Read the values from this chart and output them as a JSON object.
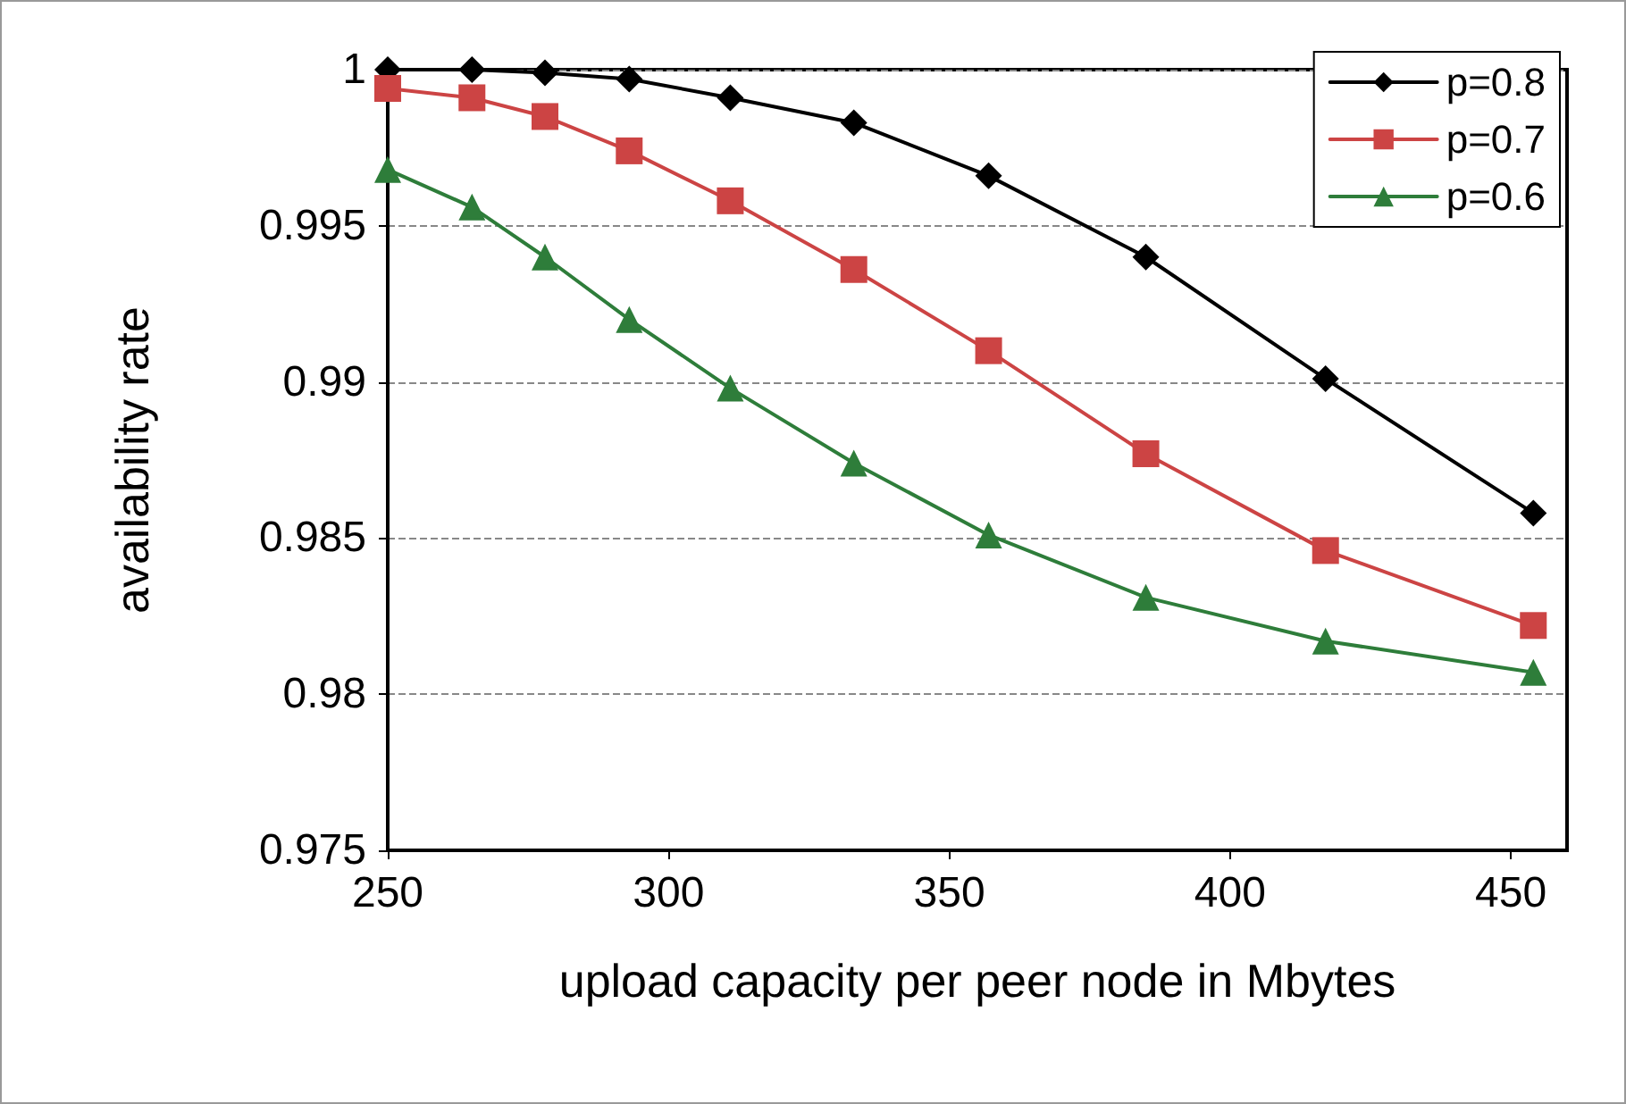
{
  "chart_data": {
    "type": "line",
    "xlabel": "upload capacity per peer node in Mbytes",
    "ylabel": "availability rate",
    "x": [
      250,
      265,
      278,
      293,
      311,
      333,
      357,
      385,
      417,
      454
    ],
    "series": [
      {
        "name": "p=0.8",
        "color": "#000000",
        "marker": "diamond",
        "values": [
          1.0,
          1.0,
          0.9999,
          0.9997,
          0.9991,
          0.9983,
          0.9966,
          0.994,
          0.9901,
          0.9858
        ]
      },
      {
        "name": "p=0.7",
        "color": "#cc4444",
        "marker": "square",
        "values": [
          0.9994,
          0.9991,
          0.9985,
          0.9974,
          0.9958,
          0.9936,
          0.991,
          0.9877,
          0.9846,
          0.9822
        ]
      },
      {
        "name": "p=0.6",
        "color": "#2e7d3a",
        "marker": "triangle",
        "values": [
          0.9968,
          0.9956,
          0.994,
          0.992,
          0.9898,
          0.9874,
          0.9851,
          0.9831,
          0.9817,
          0.9807
        ]
      }
    ],
    "xlim": [
      250,
      460
    ],
    "xticks": [
      250,
      300,
      350,
      400,
      450
    ],
    "ylim": [
      0.975,
      1
    ],
    "yticks": [
      0.975,
      0.98,
      0.985,
      0.99,
      0.995,
      1
    ],
    "grid": "y",
    "legend": "top right",
    "line_style": "solid"
  }
}
